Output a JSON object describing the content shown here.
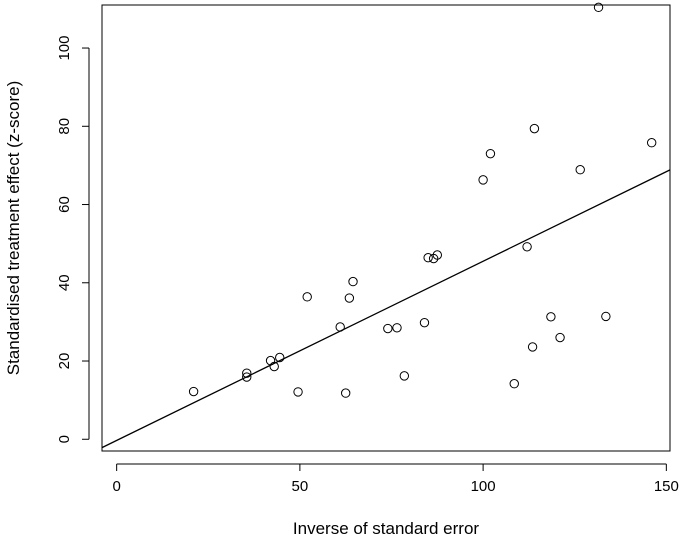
{
  "chart_data": {
    "type": "scatter",
    "title": "",
    "xlabel": "Inverse of standard error",
    "ylabel": "Standardised treatment effect (z-score)",
    "xlim": [
      -4,
      151
    ],
    "ylim": [
      -3,
      111
    ],
    "xticks": [
      0,
      50,
      100,
      150
    ],
    "yticks": [
      0,
      20,
      40,
      60,
      80,
      100
    ],
    "grid": false,
    "legend": "none",
    "marker": "open-circle",
    "regression_line": {
      "intercept": -0.3,
      "slope": 0.458
    },
    "points": [
      {
        "x": 21,
        "y": 12.2
      },
      {
        "x": 35.5,
        "y": 16.9
      },
      {
        "x": 35.5,
        "y": 15.9
      },
      {
        "x": 42,
        "y": 20.1
      },
      {
        "x": 43,
        "y": 18.6
      },
      {
        "x": 44.5,
        "y": 20.9
      },
      {
        "x": 49.5,
        "y": 12.1
      },
      {
        "x": 52,
        "y": 36.4
      },
      {
        "x": 61,
        "y": 28.7
      },
      {
        "x": 62.5,
        "y": 11.8
      },
      {
        "x": 63.5,
        "y": 36.1
      },
      {
        "x": 64.5,
        "y": 40.3
      },
      {
        "x": 74,
        "y": 28.3
      },
      {
        "x": 76.5,
        "y": 28.5
      },
      {
        "x": 78.5,
        "y": 16.2
      },
      {
        "x": 84,
        "y": 29.8
      },
      {
        "x": 85,
        "y": 46.4
      },
      {
        "x": 86.5,
        "y": 46.2
      },
      {
        "x": 87.5,
        "y": 47.1
      },
      {
        "x": 100,
        "y": 66.3
      },
      {
        "x": 102,
        "y": 73
      },
      {
        "x": 108.5,
        "y": 14.2
      },
      {
        "x": 112,
        "y": 49.2
      },
      {
        "x": 113.5,
        "y": 23.6
      },
      {
        "x": 114,
        "y": 79.4
      },
      {
        "x": 118.5,
        "y": 31.3
      },
      {
        "x": 121,
        "y": 26
      },
      {
        "x": 126.5,
        "y": 68.9
      },
      {
        "x": 131.5,
        "y": 110.4
      },
      {
        "x": 133.5,
        "y": 31.4
      },
      {
        "x": 146,
        "y": 75.8
      }
    ]
  }
}
